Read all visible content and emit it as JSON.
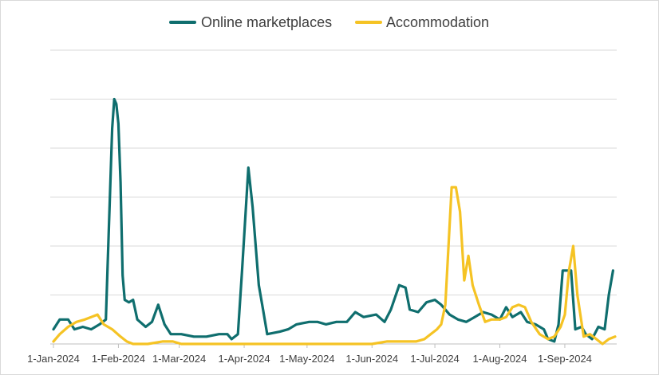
{
  "chart_data": {
    "type": "line",
    "title": "",
    "xlabel": "",
    "ylabel": "",
    "x_ticks": [
      "1-Jan-2024",
      "1-Feb-2024",
      "1-Mar-2024",
      "1-Apr-2024",
      "1-May-2024",
      "1-Jun-2024",
      "1-Jul-2024",
      "1-Aug-2024",
      "1-Sep-2024"
    ],
    "x_range": [
      "2024-01-01",
      "2024-09-25"
    ],
    "y_range": [
      0,
      6
    ],
    "y_gridlines": [
      1,
      2,
      3,
      4,
      5,
      6
    ],
    "y_tick_labels_visible": false,
    "grid": true,
    "legend_position": "top",
    "series": [
      {
        "name": "Online marketplaces",
        "color": "#0f6e6e",
        "points": [
          [
            "2024-01-01",
            0.3
          ],
          [
            "2024-01-04",
            0.5
          ],
          [
            "2024-01-08",
            0.5
          ],
          [
            "2024-01-11",
            0.3
          ],
          [
            "2024-01-15",
            0.35
          ],
          [
            "2024-01-19",
            0.3
          ],
          [
            "2024-01-23",
            0.4
          ],
          [
            "2024-01-26",
            0.5
          ],
          [
            "2024-01-27",
            1.8
          ],
          [
            "2024-01-29",
            4.4
          ],
          [
            "2024-01-30",
            5.0
          ],
          [
            "2024-01-31",
            4.9
          ],
          [
            "2024-02-01",
            4.5
          ],
          [
            "2024-02-02",
            3.3
          ],
          [
            "2024-02-03",
            1.4
          ],
          [
            "2024-02-04",
            0.9
          ],
          [
            "2024-02-06",
            0.85
          ],
          [
            "2024-02-08",
            0.9
          ],
          [
            "2024-02-10",
            0.5
          ],
          [
            "2024-02-14",
            0.35
          ],
          [
            "2024-02-17",
            0.45
          ],
          [
            "2024-02-20",
            0.8
          ],
          [
            "2024-02-23",
            0.4
          ],
          [
            "2024-02-26",
            0.2
          ],
          [
            "2024-03-02",
            0.2
          ],
          [
            "2024-03-08",
            0.15
          ],
          [
            "2024-03-14",
            0.15
          ],
          [
            "2024-03-20",
            0.2
          ],
          [
            "2024-03-24",
            0.2
          ],
          [
            "2024-03-26",
            0.1
          ],
          [
            "2024-03-29",
            0.2
          ],
          [
            "2024-03-31",
            1.5
          ],
          [
            "2024-04-03",
            3.6
          ],
          [
            "2024-04-05",
            2.8
          ],
          [
            "2024-04-08",
            1.2
          ],
          [
            "2024-04-10",
            0.7
          ],
          [
            "2024-04-12",
            0.2
          ],
          [
            "2024-04-18",
            0.25
          ],
          [
            "2024-04-22",
            0.3
          ],
          [
            "2024-04-26",
            0.4
          ],
          [
            "2024-05-02",
            0.45
          ],
          [
            "2024-05-06",
            0.45
          ],
          [
            "2024-05-10",
            0.4
          ],
          [
            "2024-05-15",
            0.45
          ],
          [
            "2024-05-20",
            0.45
          ],
          [
            "2024-05-24",
            0.65
          ],
          [
            "2024-05-28",
            0.55
          ],
          [
            "2024-06-03",
            0.6
          ],
          [
            "2024-06-07",
            0.45
          ],
          [
            "2024-06-10",
            0.7
          ],
          [
            "2024-06-14",
            1.2
          ],
          [
            "2024-06-17",
            1.15
          ],
          [
            "2024-06-19",
            0.7
          ],
          [
            "2024-06-23",
            0.65
          ],
          [
            "2024-06-27",
            0.85
          ],
          [
            "2024-07-01",
            0.9
          ],
          [
            "2024-07-04",
            0.8
          ],
          [
            "2024-07-08",
            0.6
          ],
          [
            "2024-07-12",
            0.5
          ],
          [
            "2024-07-16",
            0.45
          ],
          [
            "2024-07-20",
            0.55
          ],
          [
            "2024-07-24",
            0.65
          ],
          [
            "2024-07-28",
            0.6
          ],
          [
            "2024-08-01",
            0.5
          ],
          [
            "2024-08-04",
            0.75
          ],
          [
            "2024-08-07",
            0.55
          ],
          [
            "2024-08-11",
            0.65
          ],
          [
            "2024-08-14",
            0.45
          ],
          [
            "2024-08-18",
            0.4
          ],
          [
            "2024-08-22",
            0.3
          ],
          [
            "2024-08-24",
            0.1
          ],
          [
            "2024-08-27",
            0.05
          ],
          [
            "2024-08-29",
            0.4
          ],
          [
            "2024-08-31",
            1.5
          ],
          [
            "2024-09-02",
            1.5
          ],
          [
            "2024-09-04",
            1.5
          ],
          [
            "2024-09-06",
            0.3
          ],
          [
            "2024-09-09",
            0.35
          ],
          [
            "2024-09-11",
            0.2
          ],
          [
            "2024-09-14",
            0.1
          ],
          [
            "2024-09-17",
            0.35
          ],
          [
            "2024-09-20",
            0.3
          ],
          [
            "2024-09-22",
            1.0
          ],
          [
            "2024-09-24",
            1.5
          ]
        ]
      },
      {
        "name": "Accommodation",
        "color": "#f5c324",
        "points": [
          [
            "2024-01-01",
            0.05
          ],
          [
            "2024-01-04",
            0.2
          ],
          [
            "2024-01-08",
            0.35
          ],
          [
            "2024-01-12",
            0.45
          ],
          [
            "2024-01-16",
            0.5
          ],
          [
            "2024-01-19",
            0.55
          ],
          [
            "2024-01-22",
            0.6
          ],
          [
            "2024-01-25",
            0.4
          ],
          [
            "2024-01-29",
            0.3
          ],
          [
            "2024-02-02",
            0.15
          ],
          [
            "2024-02-05",
            0.05
          ],
          [
            "2024-02-08",
            0.0
          ],
          [
            "2024-02-15",
            0.0
          ],
          [
            "2024-02-22",
            0.05
          ],
          [
            "2024-02-27",
            0.05
          ],
          [
            "2024-03-02",
            0.0
          ],
          [
            "2024-03-10",
            0.0
          ],
          [
            "2024-03-20",
            0.0
          ],
          [
            "2024-04-01",
            0.0
          ],
          [
            "2024-04-15",
            0.0
          ],
          [
            "2024-05-01",
            0.0
          ],
          [
            "2024-05-15",
            0.0
          ],
          [
            "2024-06-01",
            0.0
          ],
          [
            "2024-06-08",
            0.05
          ],
          [
            "2024-06-12",
            0.05
          ],
          [
            "2024-06-16",
            0.05
          ],
          [
            "2024-06-22",
            0.05
          ],
          [
            "2024-06-26",
            0.1
          ],
          [
            "2024-06-29",
            0.2
          ],
          [
            "2024-07-02",
            0.3
          ],
          [
            "2024-07-04",
            0.4
          ],
          [
            "2024-07-06",
            0.8
          ],
          [
            "2024-07-09",
            3.2
          ],
          [
            "2024-07-11",
            3.2
          ],
          [
            "2024-07-13",
            2.7
          ],
          [
            "2024-07-15",
            1.3
          ],
          [
            "2024-07-17",
            1.8
          ],
          [
            "2024-07-19",
            1.2
          ],
          [
            "2024-07-22",
            0.8
          ],
          [
            "2024-07-25",
            0.45
          ],
          [
            "2024-07-28",
            0.5
          ],
          [
            "2024-08-01",
            0.5
          ],
          [
            "2024-08-04",
            0.55
          ],
          [
            "2024-08-07",
            0.75
          ],
          [
            "2024-08-10",
            0.8
          ],
          [
            "2024-08-13",
            0.75
          ],
          [
            "2024-08-16",
            0.45
          ],
          [
            "2024-08-20",
            0.2
          ],
          [
            "2024-08-24",
            0.1
          ],
          [
            "2024-08-27",
            0.15
          ],
          [
            "2024-08-30",
            0.35
          ],
          [
            "2024-09-01",
            0.6
          ],
          [
            "2024-09-03",
            1.5
          ],
          [
            "2024-09-05",
            2.0
          ],
          [
            "2024-09-07",
            1.0
          ],
          [
            "2024-09-10",
            0.15
          ],
          [
            "2024-09-13",
            0.2
          ],
          [
            "2024-09-16",
            0.1
          ],
          [
            "2024-09-19",
            0.0
          ],
          [
            "2024-09-22",
            0.1
          ],
          [
            "2024-09-25",
            0.15
          ]
        ]
      }
    ]
  }
}
